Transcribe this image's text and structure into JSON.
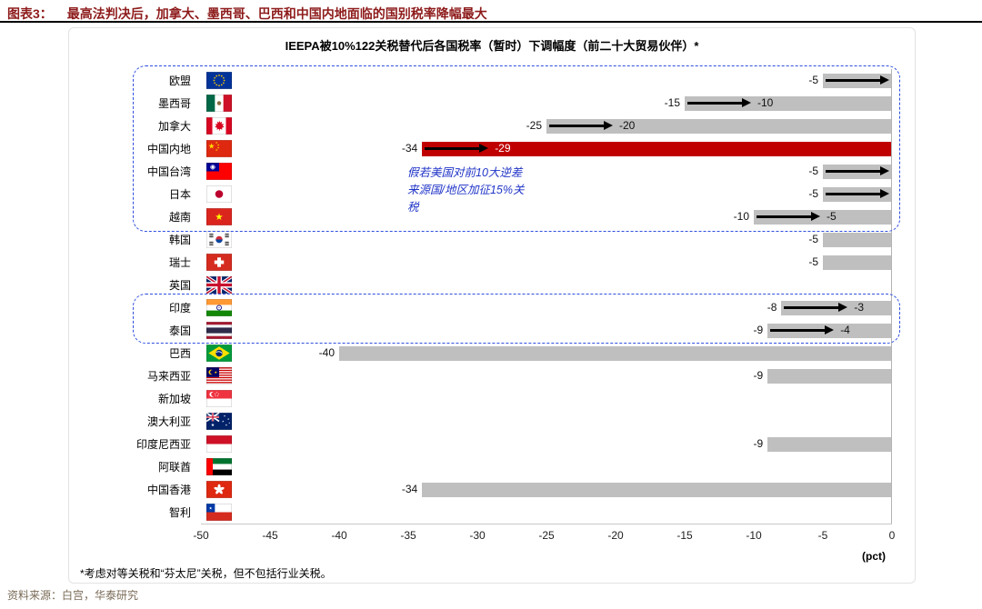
{
  "page": {
    "header": {
      "label": "图表3：",
      "title": "最高法判决后，加拿大、墨西哥、巴西和中国内地面临的国别税率降幅最大"
    },
    "footnote": "*考虑对等关税和“芬太尼”关税，但不包括行业关税。",
    "source": "资料来源：白宫，华泰研究"
  },
  "chart_data": {
    "type": "bar",
    "title": "IEEPA被10%122关税替代后各国税率（暂时）下调幅度（前二十大贸易伙伴）*",
    "unit_label": "(pct)",
    "xlim": [
      -50,
      0
    ],
    "x_ticks": [
      -50,
      -45,
      -40,
      -35,
      -30,
      -25,
      -20,
      -15,
      -10,
      -5,
      0
    ],
    "grid": false,
    "legend": "none",
    "annotation": {
      "text_lines": [
        "假若美国对前10大逆差",
        "来源国/地区加征15%关",
        "税"
      ],
      "color": "#2236C8"
    },
    "colors": {
      "bar": "#BFBFBF",
      "highlight_bar": "#C00000",
      "dashed_box": "#2E4EE0",
      "annotation_text": "#2236C8",
      "header_text": "#8E1B1B",
      "source_text": "#7A6B57"
    },
    "rows": [
      {
        "country": "欧盟",
        "flag": "eu",
        "value": -5,
        "label": "-5",
        "arrow_to": 0,
        "end_label": null,
        "highlight": false,
        "in_dashed_box": true
      },
      {
        "country": "墨西哥",
        "flag": "mexico",
        "value": -15,
        "label": "-15",
        "arrow_to": -10,
        "end_label": "-10",
        "highlight": false,
        "in_dashed_box": true
      },
      {
        "country": "加拿大",
        "flag": "canada",
        "value": -25,
        "label": "-25",
        "arrow_to": -20,
        "end_label": "-20",
        "highlight": false,
        "in_dashed_box": true
      },
      {
        "country": "中国内地",
        "flag": "china",
        "value": -34,
        "label": "-34",
        "arrow_to": -29,
        "end_label": "-29",
        "highlight": true,
        "in_dashed_box": true
      },
      {
        "country": "中国台湾",
        "flag": "taiwan",
        "value": -5,
        "label": "-5",
        "arrow_to": 0,
        "end_label": null,
        "highlight": false,
        "in_dashed_box": true
      },
      {
        "country": "日本",
        "flag": "japan",
        "value": -5,
        "label": "-5",
        "arrow_to": 0,
        "end_label": null,
        "highlight": false,
        "in_dashed_box": true
      },
      {
        "country": "越南",
        "flag": "vietnam",
        "value": -10,
        "label": "-10",
        "arrow_to": -5,
        "end_label": "-5",
        "highlight": false,
        "in_dashed_box": true
      },
      {
        "country": "韩国",
        "flag": "korea",
        "value": -5,
        "label": "-5",
        "arrow_to": null,
        "end_label": null,
        "highlight": false,
        "in_dashed_box": false
      },
      {
        "country": "瑞士",
        "flag": "switzerland",
        "value": -5,
        "label": "-5",
        "arrow_to": null,
        "end_label": null,
        "highlight": false,
        "in_dashed_box": false
      },
      {
        "country": "英国",
        "flag": "uk",
        "value": null,
        "label": null,
        "arrow_to": null,
        "end_label": null,
        "highlight": false,
        "in_dashed_box": false
      },
      {
        "country": "印度",
        "flag": "india",
        "value": -8,
        "label": "-8",
        "arrow_to": -3,
        "end_label": "-3",
        "highlight": false,
        "in_dashed_box": true
      },
      {
        "country": "泰国",
        "flag": "thailand",
        "value": -9,
        "label": "-9",
        "arrow_to": -4,
        "end_label": "-4",
        "highlight": false,
        "in_dashed_box": true
      },
      {
        "country": "巴西",
        "flag": "brazil",
        "value": -40,
        "label": "-40",
        "arrow_to": null,
        "end_label": null,
        "highlight": false,
        "in_dashed_box": false
      },
      {
        "country": "马来西亚",
        "flag": "malaysia",
        "value": -9,
        "label": "-9",
        "arrow_to": null,
        "end_label": null,
        "highlight": false,
        "in_dashed_box": false
      },
      {
        "country": "新加坡",
        "flag": "singapore",
        "value": null,
        "label": null,
        "arrow_to": null,
        "end_label": null,
        "highlight": false,
        "in_dashed_box": false
      },
      {
        "country": "澳大利亚",
        "flag": "australia",
        "value": null,
        "label": null,
        "arrow_to": null,
        "end_label": null,
        "highlight": false,
        "in_dashed_box": false
      },
      {
        "country": "印度尼西亚",
        "flag": "indonesia",
        "value": -9,
        "label": "-9",
        "arrow_to": null,
        "end_label": null,
        "highlight": false,
        "in_dashed_box": false
      },
      {
        "country": "阿联酋",
        "flag": "uae",
        "value": null,
        "label": null,
        "arrow_to": null,
        "end_label": null,
        "highlight": false,
        "in_dashed_box": false
      },
      {
        "country": "中国香港",
        "flag": "hongkong",
        "value": -34,
        "label": "-34",
        "arrow_to": null,
        "end_label": null,
        "highlight": false,
        "in_dashed_box": false
      },
      {
        "country": "智利",
        "flag": "chile",
        "value": null,
        "label": null,
        "arrow_to": null,
        "end_label": null,
        "highlight": false,
        "in_dashed_box": false
      }
    ]
  }
}
